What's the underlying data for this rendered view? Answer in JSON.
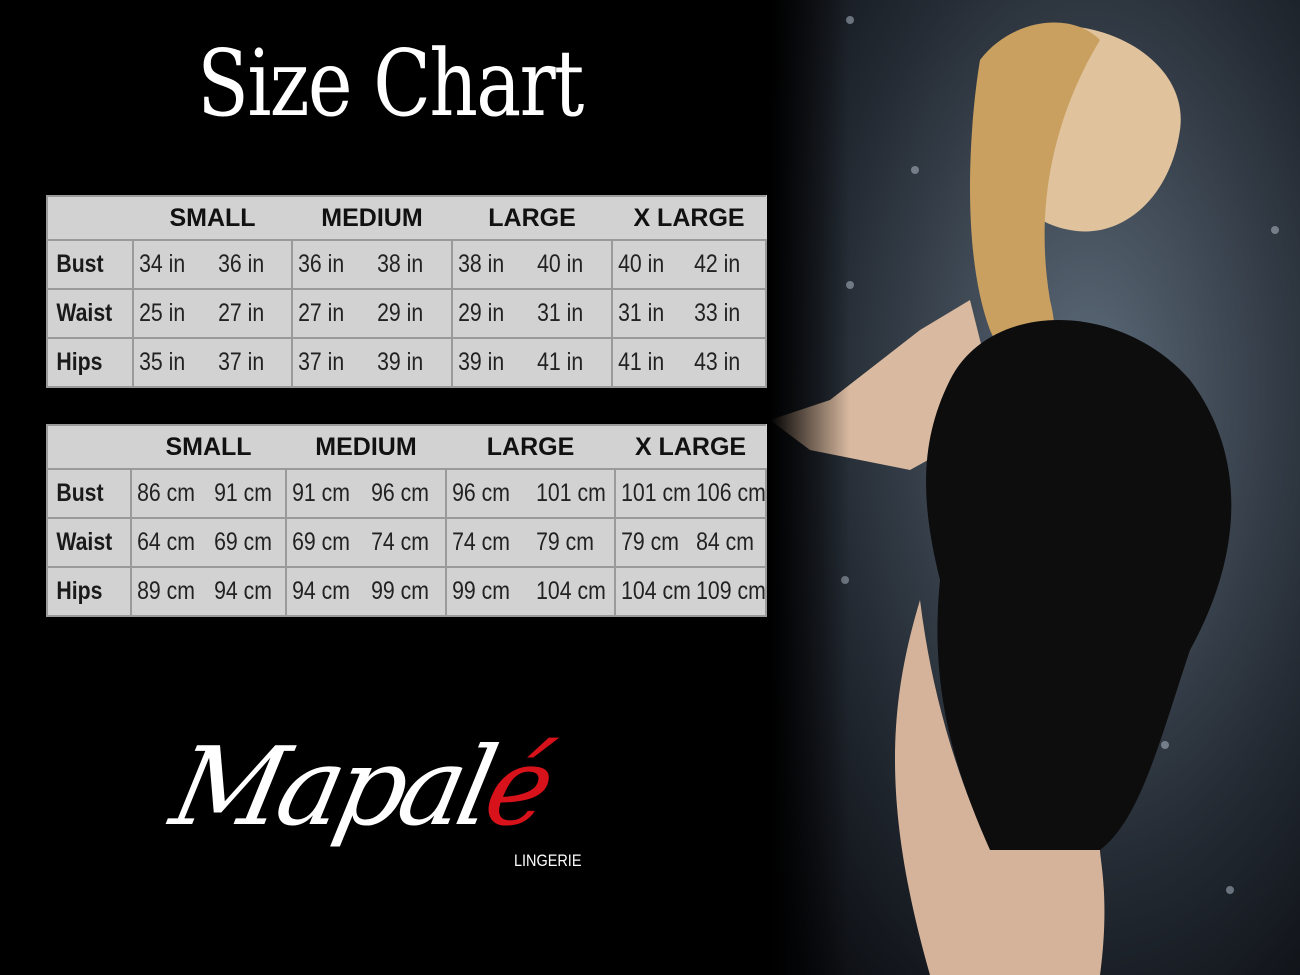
{
  "title": "Size Chart",
  "tables": [
    {
      "headers": [
        "SMALL",
        "MEDIUM",
        "LARGE",
        "X LARGE"
      ],
      "rows": [
        {
          "label": "Bust",
          "values": [
            "34 in",
            "36 in",
            "36 in",
            "38 in",
            "38 in",
            "40 in",
            "40 in",
            "42 in"
          ]
        },
        {
          "label": "Waist",
          "values": [
            "25 in",
            "27 in",
            "27 in",
            "29 in",
            "29 in",
            "31 in",
            "31 in",
            "33 in"
          ]
        },
        {
          "label": "Hips",
          "values": [
            "35 in",
            "37 in",
            "37 in",
            "39 in",
            "39 in",
            "41 in",
            "41 in",
            "43 in"
          ]
        }
      ]
    },
    {
      "headers": [
        "SMALL",
        "MEDIUM",
        "LARGE",
        "X LARGE"
      ],
      "rows": [
        {
          "label": "Bust",
          "values": [
            "86 cm",
            "91 cm",
            "91 cm",
            "96 cm",
            "96 cm",
            "101 cm",
            "101 cm",
            "106 cm"
          ]
        },
        {
          "label": "Waist",
          "values": [
            "64 cm",
            "69 cm",
            "69 cm",
            "74 cm",
            "74 cm",
            "79 cm",
            "79 cm",
            "84 cm"
          ]
        },
        {
          "label": "Hips",
          "values": [
            "89 cm",
            "94 cm",
            "94 cm",
            "99 cm",
            "99 cm",
            "104 cm",
            "104 cm",
            "109 cm"
          ]
        }
      ]
    }
  ],
  "logo": {
    "brand_main": "Mapal",
    "brand_accent": "é",
    "subtitle": "LINGERIE",
    "accent_color": "#d8121b"
  },
  "colors": {
    "background": "#000000",
    "table_bg": "#d2d2d2",
    "table_border": "#9a9a9a"
  }
}
